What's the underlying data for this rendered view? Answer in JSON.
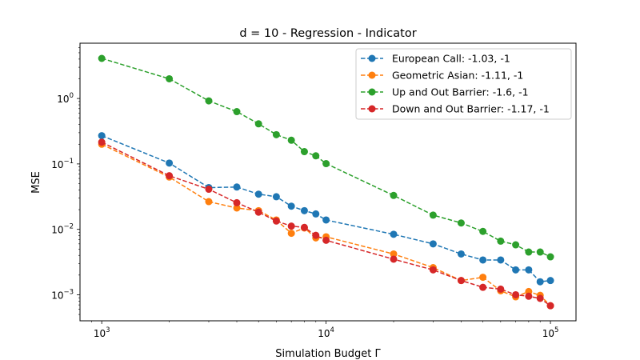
{
  "chart_data": {
    "type": "line",
    "title": "d = 10 - Regression - Indicator",
    "xlabel": "Simulation Budget Γ",
    "ylabel": "MSE",
    "xscale": "log",
    "yscale": "log",
    "xlim": [
      800,
      130000
    ],
    "ylim": [
      0.0004,
      7
    ],
    "x_ticks": [
      {
        "value": 1000,
        "base": "10",
        "exp": "3"
      },
      {
        "value": 10000,
        "base": "10",
        "exp": "4"
      },
      {
        "value": 100000,
        "base": "10",
        "exp": "5"
      }
    ],
    "y_ticks": [
      {
        "value": 0.001,
        "base": "10",
        "exp": "−3"
      },
      {
        "value": 0.01,
        "base": "10",
        "exp": "−2"
      },
      {
        "value": 0.1,
        "base": "10",
        "exp": "−1"
      },
      {
        "value": 1,
        "base": "10",
        "exp": "0"
      }
    ],
    "legend_position": "top-right",
    "x": [
      1000,
      2000,
      3000,
      4000,
      5000,
      6000,
      7000,
      8000,
      9000,
      10000,
      20000,
      30000,
      40000,
      50000,
      60000,
      70000,
      80000,
      90000,
      100000
    ],
    "series": [
      {
        "name": "European Call: -1.03, -1",
        "color": "#1f77b4",
        "values": [
          0.27,
          0.103,
          0.0435,
          0.0443,
          0.0345,
          0.0315,
          0.0226,
          0.0193,
          0.0172,
          0.0139,
          0.0084,
          0.006,
          0.0042,
          0.0034,
          0.0034,
          0.0024,
          0.0024,
          0.00158,
          0.00165
        ]
      },
      {
        "name": "Geometric Asian: -1.11, -1",
        "color": "#ff7f0e",
        "values": [
          0.2,
          0.063,
          0.0265,
          0.0212,
          0.0193,
          0.0139,
          0.0087,
          0.0105,
          0.0074,
          0.0077,
          0.0042,
          0.0026,
          0.00165,
          0.00185,
          0.00115,
          0.00093,
          0.00112,
          0.00098,
          0.00068
        ]
      },
      {
        "name": "Up and Out Barrier: -1.6, -1",
        "color": "#2ca02c",
        "values": [
          4.1,
          2.0,
          0.92,
          0.63,
          0.41,
          0.28,
          0.23,
          0.154,
          0.133,
          0.101,
          0.033,
          0.0165,
          0.0125,
          0.0093,
          0.0066,
          0.0058,
          0.0045,
          0.0045,
          0.0038
        ]
      },
      {
        "name": "Down and Out Barrier: -1.17, -1",
        "color": "#d62728",
        "values": [
          0.215,
          0.066,
          0.041,
          0.0255,
          0.0183,
          0.0134,
          0.0112,
          0.0107,
          0.0081,
          0.0068,
          0.0035,
          0.0024,
          0.00165,
          0.0013,
          0.00122,
          0.001,
          0.00095,
          0.00088,
          0.00068
        ]
      }
    ]
  }
}
